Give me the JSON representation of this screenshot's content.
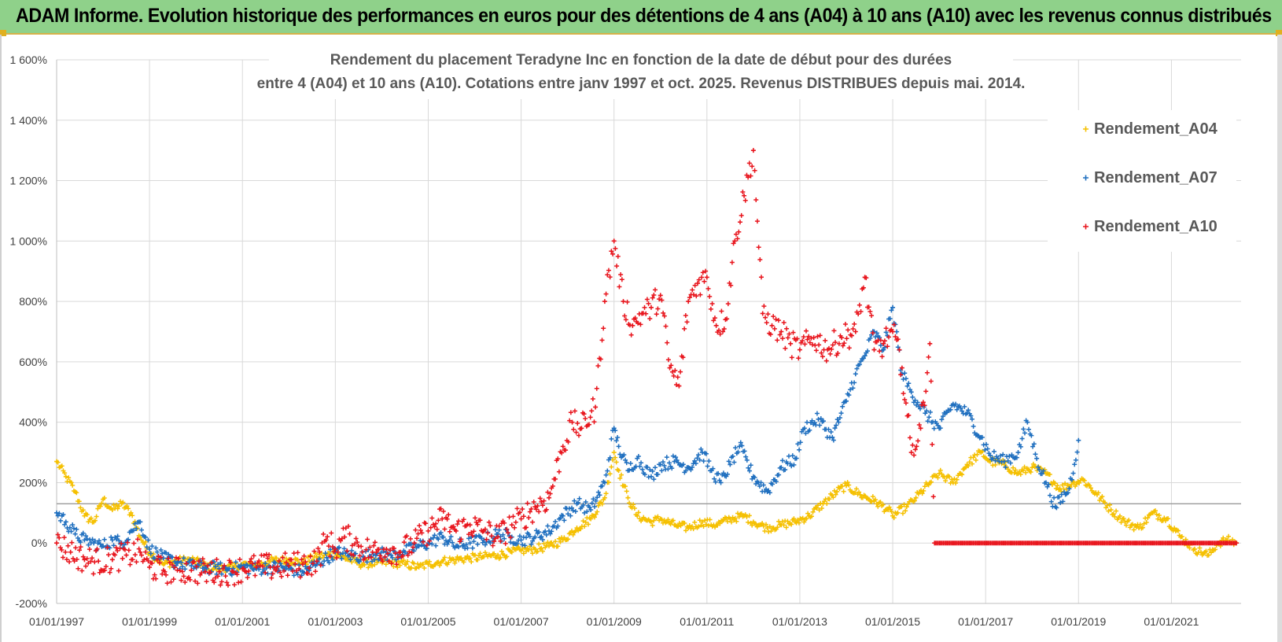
{
  "banner": {
    "text": "ADAM Informe. Evolution historique des performances en euros pour des détentions de 4 ans (A04) à 10 ans (A10) avec les revenus connus distribués"
  },
  "chart_data": {
    "type": "scatter",
    "title_line1": "Rendement du placement Teradyne Inc en fonction de la date de début pour des durées",
    "title_line2": "entre 4 (A04) et 10 ans (A10). Cotations entre janv 1997 et oct. 2025. Revenus DISTRIBUES depuis mai. 2014.",
    "xlabel": "",
    "ylabel": "",
    "xlim": [
      1997.0,
      2022.5
    ],
    "ylim": [
      -200,
      1600
    ],
    "y_ticks": [
      -200,
      0,
      200,
      400,
      600,
      800,
      1000,
      1200,
      1400,
      1600
    ],
    "y_tick_labels": [
      "-200%",
      "0%",
      "200%",
      "400%",
      "600%",
      "800%",
      "1 000%",
      "1 200%",
      "1 400%",
      "1 600%"
    ],
    "x_ticks": [
      1997,
      1999,
      2001,
      2003,
      2005,
      2007,
      2009,
      2011,
      2013,
      2015,
      2017,
      2019,
      2021
    ],
    "x_tick_labels": [
      "01/01/1997",
      "01/01/1999",
      "01/01/2001",
      "01/01/2003",
      "01/01/2005",
      "01/01/2007",
      "01/01/2009",
      "01/01/2011",
      "01/01/2013",
      "01/01/2015",
      "01/01/2017",
      "01/01/2019",
      "01/01/2021"
    ],
    "ref_line_y": 130,
    "grid": true,
    "legend_position": "top-right",
    "series": [
      {
        "name": "Rendement_A04",
        "color": "#f5c000",
        "points": [
          [
            1997.0,
            270
          ],
          [
            1997.2,
            220
          ],
          [
            1997.4,
            170
          ],
          [
            1997.6,
            90
          ],
          [
            1997.8,
            70
          ],
          [
            1998.0,
            145
          ],
          [
            1998.2,
            110
          ],
          [
            1998.4,
            130
          ],
          [
            1998.6,
            100
          ],
          [
            1998.8,
            20
          ],
          [
            1999.0,
            -30
          ],
          [
            1999.3,
            -70
          ],
          [
            1999.6,
            -60
          ],
          [
            1999.9,
            -55
          ],
          [
            2000.2,
            -75
          ],
          [
            2000.5,
            -85
          ],
          [
            2000.8,
            -80
          ],
          [
            2001.0,
            -70
          ],
          [
            2001.3,
            -75
          ],
          [
            2001.6,
            -60
          ],
          [
            2002.0,
            -55
          ],
          [
            2002.3,
            -65
          ],
          [
            2002.6,
            -45
          ],
          [
            2003.0,
            -35
          ],
          [
            2003.3,
            -55
          ],
          [
            2003.6,
            -70
          ],
          [
            2003.9,
            -65
          ],
          [
            2004.2,
            -65
          ],
          [
            2004.5,
            -70
          ],
          [
            2004.8,
            -80
          ],
          [
            2005.0,
            -70
          ],
          [
            2005.3,
            -60
          ],
          [
            2005.6,
            -55
          ],
          [
            2005.9,
            -50
          ],
          [
            2006.2,
            -45
          ],
          [
            2006.5,
            -40
          ],
          [
            2006.8,
            -30
          ],
          [
            2007.0,
            -25
          ],
          [
            2007.3,
            -20
          ],
          [
            2007.6,
            -10
          ],
          [
            2007.9,
            10
          ],
          [
            2008.2,
            50
          ],
          [
            2008.5,
            80
          ],
          [
            2008.8,
            150
          ],
          [
            2009.0,
            300
          ],
          [
            2009.1,
            240
          ],
          [
            2009.3,
            150
          ],
          [
            2009.5,
            90
          ],
          [
            2009.8,
            70
          ],
          [
            2010.0,
            80
          ],
          [
            2010.3,
            60
          ],
          [
            2010.6,
            50
          ],
          [
            2010.9,
            70
          ],
          [
            2011.2,
            60
          ],
          [
            2011.5,
            80
          ],
          [
            2011.8,
            90
          ],
          [
            2012.0,
            70
          ],
          [
            2012.3,
            50
          ],
          [
            2012.6,
            60
          ],
          [
            2012.9,
            70
          ],
          [
            2013.2,
            90
          ],
          [
            2013.5,
            130
          ],
          [
            2013.8,
            170
          ],
          [
            2014.0,
            190
          ],
          [
            2014.3,
            160
          ],
          [
            2014.6,
            140
          ],
          [
            2014.9,
            110
          ],
          [
            2015.0,
            90
          ],
          [
            2015.3,
            120
          ],
          [
            2015.5,
            150
          ],
          [
            2015.8,
            200
          ],
          [
            2016.0,
            230
          ],
          [
            2016.3,
            200
          ],
          [
            2016.6,
            260
          ],
          [
            2016.9,
            300
          ],
          [
            2017.1,
            270
          ],
          [
            2017.4,
            260
          ],
          [
            2017.7,
            230
          ],
          [
            2018.0,
            250
          ],
          [
            2018.3,
            230
          ],
          [
            2018.6,
            180
          ],
          [
            2018.9,
            200
          ],
          [
            2019.1,
            210
          ],
          [
            2019.4,
            160
          ],
          [
            2019.7,
            110
          ],
          [
            2020.0,
            70
          ],
          [
            2020.3,
            50
          ],
          [
            2020.6,
            100
          ],
          [
            2020.9,
            80
          ],
          [
            2021.2,
            20
          ],
          [
            2021.5,
            -20
          ],
          [
            2021.8,
            -40
          ],
          [
            2022.0,
            0
          ],
          [
            2022.2,
            10
          ],
          [
            2022.4,
            0
          ]
        ]
      },
      {
        "name": "Rendement_A07",
        "color": "#1f6fbf",
        "points": [
          [
            1997.0,
            100
          ],
          [
            1997.2,
            70
          ],
          [
            1997.4,
            30
          ],
          [
            1997.6,
            10
          ],
          [
            1997.8,
            0
          ],
          [
            1998.0,
            -10
          ],
          [
            1998.2,
            10
          ],
          [
            1998.4,
            0
          ],
          [
            1998.6,
            40
          ],
          [
            1998.8,
            70
          ],
          [
            1999.0,
            -20
          ],
          [
            1999.3,
            -50
          ],
          [
            1999.6,
            -65
          ],
          [
            1999.9,
            -75
          ],
          [
            2000.2,
            -80
          ],
          [
            2000.5,
            -85
          ],
          [
            2000.8,
            -85
          ],
          [
            2001.0,
            -80
          ],
          [
            2001.3,
            -85
          ],
          [
            2001.6,
            -80
          ],
          [
            2002.0,
            -85
          ],
          [
            2002.3,
            -95
          ],
          [
            2002.6,
            -70
          ],
          [
            2003.0,
            -30
          ],
          [
            2003.3,
            -40
          ],
          [
            2003.6,
            -45
          ],
          [
            2003.9,
            -35
          ],
          [
            2004.2,
            -40
          ],
          [
            2004.5,
            -30
          ],
          [
            2004.8,
            -10
          ],
          [
            2005.0,
            0
          ],
          [
            2005.3,
            20
          ],
          [
            2005.6,
            -10
          ],
          [
            2005.9,
            0
          ],
          [
            2006.2,
            10
          ],
          [
            2006.5,
            30
          ],
          [
            2006.8,
            20
          ],
          [
            2007.0,
            10
          ],
          [
            2007.3,
            20
          ],
          [
            2007.6,
            40
          ],
          [
            2007.9,
            90
          ],
          [
            2008.2,
            130
          ],
          [
            2008.5,
            110
          ],
          [
            2008.8,
            200
          ],
          [
            2009.0,
            380
          ],
          [
            2009.1,
            320
          ],
          [
            2009.3,
            240
          ],
          [
            2009.5,
            280
          ],
          [
            2009.8,
            220
          ],
          [
            2010.0,
            260
          ],
          [
            2010.3,
            270
          ],
          [
            2010.6,
            250
          ],
          [
            2010.9,
            300
          ],
          [
            2011.1,
            240
          ],
          [
            2011.3,
            200
          ],
          [
            2011.5,
            260
          ],
          [
            2011.7,
            320
          ],
          [
            2012.0,
            220
          ],
          [
            2012.3,
            170
          ],
          [
            2012.6,
            250
          ],
          [
            2012.9,
            280
          ],
          [
            2013.1,
            380
          ],
          [
            2013.4,
            410
          ],
          [
            2013.7,
            350
          ],
          [
            2014.0,
            470
          ],
          [
            2014.2,
            560
          ],
          [
            2014.4,
            620
          ],
          [
            2014.6,
            700
          ],
          [
            2014.8,
            640
          ],
          [
            2015.0,
            780
          ],
          [
            2015.2,
            560
          ],
          [
            2015.4,
            500
          ],
          [
            2015.7,
            430
          ],
          [
            2016.0,
            380
          ],
          [
            2016.3,
            460
          ],
          [
            2016.6,
            430
          ],
          [
            2016.9,
            350
          ],
          [
            2017.1,
            290
          ],
          [
            2017.4,
            270
          ],
          [
            2017.7,
            300
          ],
          [
            2017.9,
            400
          ],
          [
            2018.1,
            280
          ],
          [
            2018.3,
            200
          ],
          [
            2018.5,
            120
          ],
          [
            2018.8,
            180
          ],
          [
            2019.0,
            340
          ]
        ]
      },
      {
        "name": "Rendement_A10",
        "color": "#e8141c",
        "points": [
          [
            1997.0,
            0
          ],
          [
            1997.3,
            -30
          ],
          [
            1997.6,
            -55
          ],
          [
            1997.9,
            -60
          ],
          [
            1998.2,
            -55
          ],
          [
            1998.5,
            -40
          ],
          [
            1998.8,
            -30
          ],
          [
            1999.0,
            -80
          ],
          [
            1999.3,
            -90
          ],
          [
            1999.6,
            -90
          ],
          [
            1999.9,
            -90
          ],
          [
            2000.2,
            -95
          ],
          [
            2000.5,
            -95
          ],
          [
            2000.8,
            -95
          ],
          [
            2001.0,
            -85
          ],
          [
            2001.3,
            -80
          ],
          [
            2001.6,
            -80
          ],
          [
            2002.0,
            -75
          ],
          [
            2002.3,
            -70
          ],
          [
            2002.6,
            -60
          ],
          [
            2002.8,
            10
          ],
          [
            2003.0,
            -20
          ],
          [
            2003.2,
            20
          ],
          [
            2003.5,
            -10
          ],
          [
            2003.8,
            -30
          ],
          [
            2004.1,
            -20
          ],
          [
            2004.4,
            -30
          ],
          [
            2004.7,
            0
          ],
          [
            2005.0,
            40
          ],
          [
            2005.3,
            80
          ],
          [
            2005.6,
            40
          ],
          [
            2005.9,
            60
          ],
          [
            2006.2,
            40
          ],
          [
            2006.5,
            20
          ],
          [
            2006.8,
            60
          ],
          [
            2007.0,
            80
          ],
          [
            2007.3,
            120
          ],
          [
            2007.6,
            150
          ],
          [
            2007.9,
            320
          ],
          [
            2008.1,
            400
          ],
          [
            2008.3,
            380
          ],
          [
            2008.6,
            450
          ],
          [
            2008.8,
            800
          ],
          [
            2009.0,
            1000
          ],
          [
            2009.2,
            800
          ],
          [
            2009.4,
            720
          ],
          [
            2009.6,
            760
          ],
          [
            2009.8,
            780
          ],
          [
            2010.0,
            820
          ],
          [
            2010.2,
            580
          ],
          [
            2010.4,
            520
          ],
          [
            2010.6,
            800
          ],
          [
            2010.8,
            860
          ],
          [
            2011.0,
            880
          ],
          [
            2011.2,
            720
          ],
          [
            2011.4,
            740
          ],
          [
            2011.6,
            1000
          ],
          [
            2011.8,
            1150
          ],
          [
            2012.0,
            1300
          ],
          [
            2012.2,
            760
          ],
          [
            2012.4,
            720
          ],
          [
            2012.6,
            700
          ],
          [
            2012.8,
            660
          ],
          [
            2013.0,
            640
          ],
          [
            2013.3,
            680
          ],
          [
            2013.6,
            640
          ],
          [
            2013.9,
            680
          ],
          [
            2014.2,
            700
          ],
          [
            2014.4,
            880
          ],
          [
            2014.6,
            640
          ],
          [
            2014.8,
            660
          ],
          [
            2015.0,
            700
          ],
          [
            2015.2,
            580
          ],
          [
            2015.4,
            300
          ],
          [
            2015.6,
            380
          ],
          [
            2015.8,
            660
          ],
          [
            2015.9,
            0
          ],
          [
            2016.2,
            0
          ],
          [
            2016.6,
            0
          ],
          [
            2017.0,
            0
          ],
          [
            2017.4,
            0
          ],
          [
            2017.8,
            0
          ],
          [
            2018.2,
            0
          ],
          [
            2018.6,
            0
          ],
          [
            2019.0,
            0
          ],
          [
            2019.4,
            0
          ],
          [
            2019.8,
            0
          ],
          [
            2020.2,
            0
          ],
          [
            2020.6,
            0
          ],
          [
            2021.0,
            0
          ],
          [
            2021.4,
            0
          ],
          [
            2021.8,
            0
          ],
          [
            2022.2,
            0
          ],
          [
            2022.4,
            0
          ]
        ]
      }
    ]
  }
}
